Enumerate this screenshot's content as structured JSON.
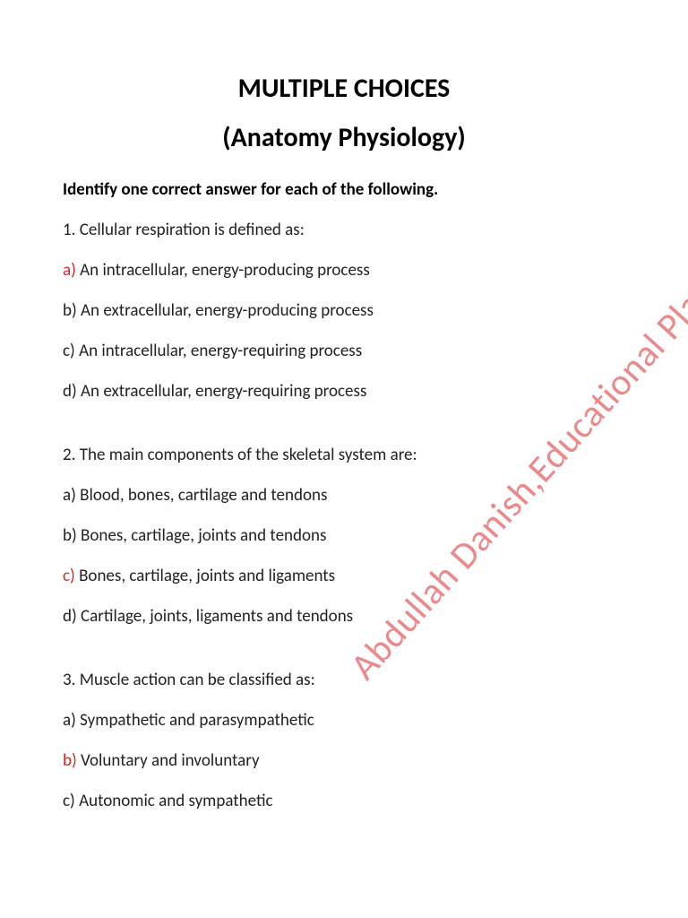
{
  "title_line1": "MULTIPLE CHOICES",
  "title_line2": "(Anatomy Physiology)",
  "instruction": "Identify one correct answer for each of the following.",
  "watermark_text": "Abdullah Danish,Educational Platform",
  "colors": {
    "text": "#222222",
    "heading": "#000000",
    "correct": "#d82a2a",
    "watermark": "rgba(216,42,42,0.55)",
    "background": "#ffffff"
  },
  "typography": {
    "title_fontsize": 30,
    "body_fontsize": 19,
    "watermark_fontsize": 42,
    "watermark_rotation_deg": -48
  },
  "questions": [
    {
      "number": "1.",
      "stem": "Cellular respiration is defined as:",
      "options": [
        {
          "letter": "a)",
          "text": "An intracellular, energy-producing process",
          "correct": true
        },
        {
          "letter": "b)",
          "text": "An extracellular, energy-producing process",
          "correct": false
        },
        {
          "letter": "c)",
          "text": "An intracellular, energy-requiring process",
          "correct": false
        },
        {
          "letter": "d)",
          "text": "An extracellular, energy-requiring process",
          "correct": false
        }
      ]
    },
    {
      "number": "2.",
      "stem": "The main components of the skeletal system are:",
      "options": [
        {
          "letter": "a)",
          "text": "Blood, bones, cartilage and tendons",
          "correct": false
        },
        {
          "letter": "b)",
          "text": "Bones, cartilage, joints and tendons",
          "correct": false
        },
        {
          "letter": "c)",
          "text": "Bones, cartilage, joints and ligaments",
          "correct": true
        },
        {
          "letter": "d)",
          "text": "Cartilage, joints, ligaments and tendons",
          "correct": false
        }
      ]
    },
    {
      "number": "3.",
      "stem": "Muscle action can be classified as:",
      "options": [
        {
          "letter": "a)",
          "text": "Sympathetic and parasympathetic",
          "correct": false
        },
        {
          "letter": "b)",
          "text": "Voluntary and involuntary",
          "correct": true
        },
        {
          "letter": "c)",
          "text": "Autonomic and sympathetic",
          "correct": false
        }
      ]
    }
  ]
}
